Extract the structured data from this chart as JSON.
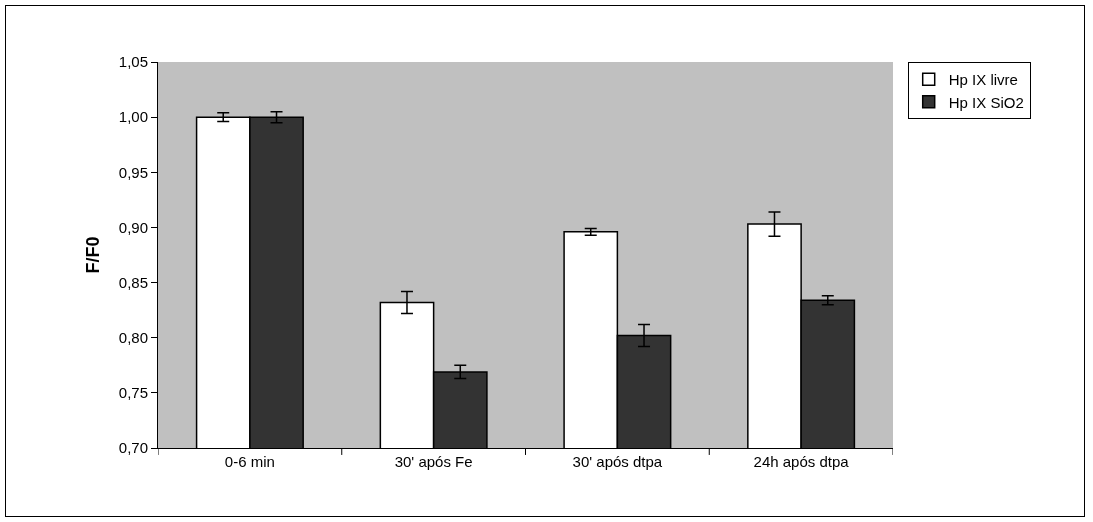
{
  "chart_data": {
    "type": "bar",
    "ylabel": "F/F0",
    "categories": [
      "0-6 min",
      "30' após Fe",
      "30' após dtpa",
      "24h após dtpa"
    ],
    "series": [
      {
        "name": "Hp IX livre",
        "color": "#ffffff",
        "values": [
          1.0,
          0.832,
          0.896,
          0.903
        ],
        "errors": [
          0.004,
          0.01,
          0.003,
          0.011
        ]
      },
      {
        "name": "Hp IX SiO2",
        "color": "#333333",
        "values": [
          1.0,
          0.769,
          0.802,
          0.834
        ],
        "errors": [
          0.005,
          0.006,
          0.01,
          0.004
        ]
      }
    ],
    "ylim": [
      0.7,
      1.05
    ],
    "yticks": [
      {
        "value": 0.7,
        "label": "0,70"
      },
      {
        "value": 0.75,
        "label": "0,75"
      },
      {
        "value": 0.8,
        "label": "0,80"
      },
      {
        "value": 0.85,
        "label": "0,85"
      },
      {
        "value": 0.9,
        "label": "0,90"
      },
      {
        "value": 0.95,
        "label": "0,95"
      },
      {
        "value": 1.0,
        "label": "1,00"
      },
      {
        "value": 1.05,
        "label": "1,05"
      }
    ],
    "grid": false,
    "legend": "top right"
  }
}
